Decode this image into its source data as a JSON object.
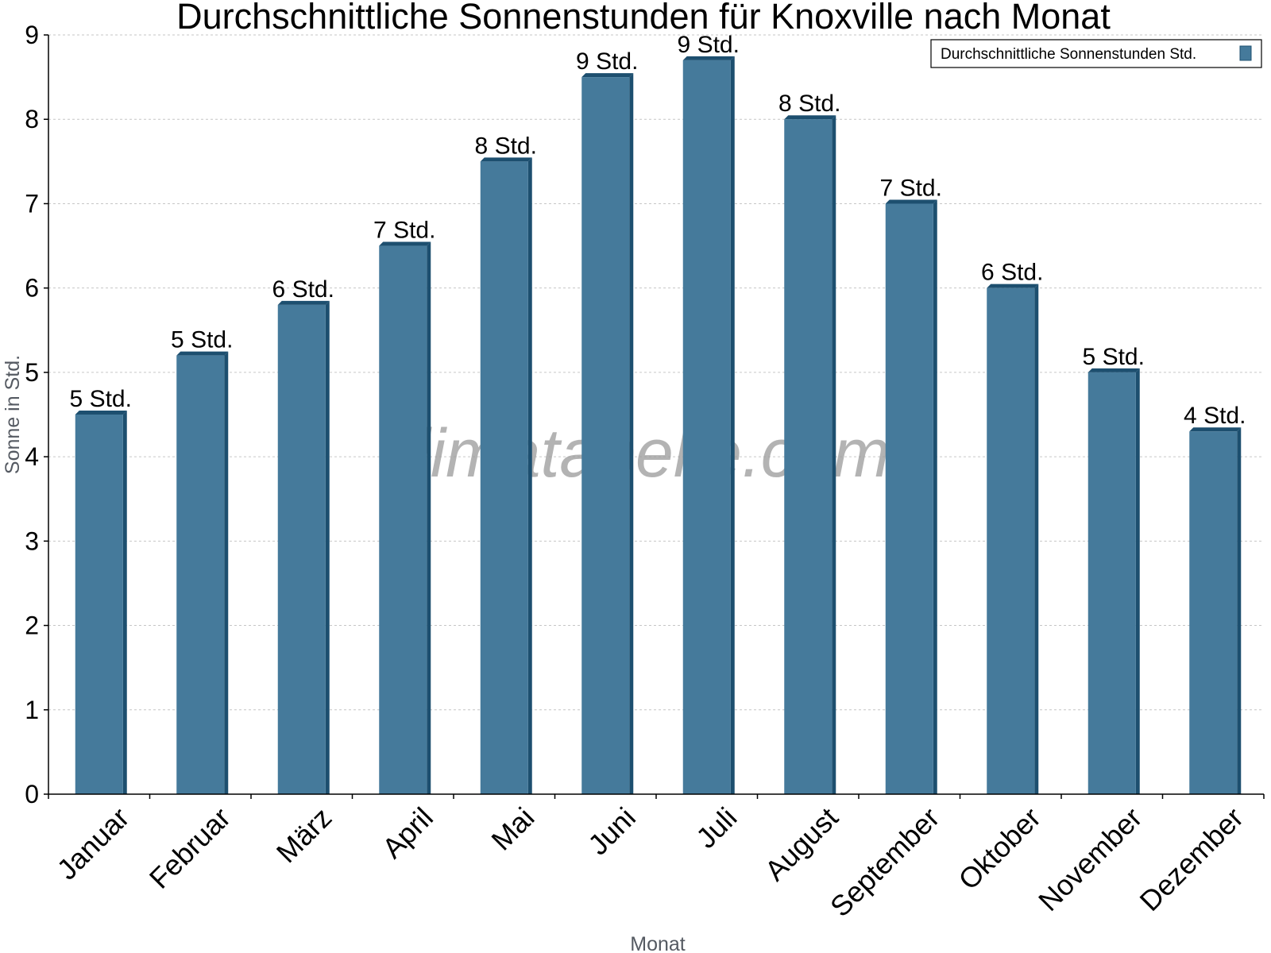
{
  "chart_data": {
    "type": "bar",
    "title": "Durchschnittliche Sonnenstunden für Knoxville nach Monat",
    "xlabel": "Monat",
    "ylabel": "Sonne in Std.",
    "ylim": [
      0,
      9
    ],
    "yticks": [
      "0",
      "1",
      "2",
      "3",
      "4",
      "5",
      "6",
      "7",
      "8",
      "9"
    ],
    "categories": [
      "Januar",
      "Februar",
      "März",
      "April",
      "Mai",
      "Juni",
      "Juli",
      "August",
      "September",
      "Oktober",
      "November",
      "Dezember"
    ],
    "series": [
      {
        "name": "Durchschnittliche Sonnenstunden Std.",
        "values": [
          4.5,
          5.2,
          5.8,
          6.5,
          7.5,
          8.5,
          8.7,
          8.0,
          7.0,
          6.0,
          5.0,
          4.3
        ],
        "data_labels": [
          "5 Std.",
          "5 Std.",
          "6 Std.",
          "7 Std.",
          "8 Std.",
          "9 Std.",
          "9 Std.",
          "8 Std.",
          "7 Std.",
          "6 Std.",
          "5 Std.",
          "4 Std."
        ],
        "color": "#457a9b",
        "side_color": "#1d4f6f"
      }
    ],
    "legend_position": "top-right",
    "grid": true,
    "watermark": "klimatabelle.com"
  }
}
